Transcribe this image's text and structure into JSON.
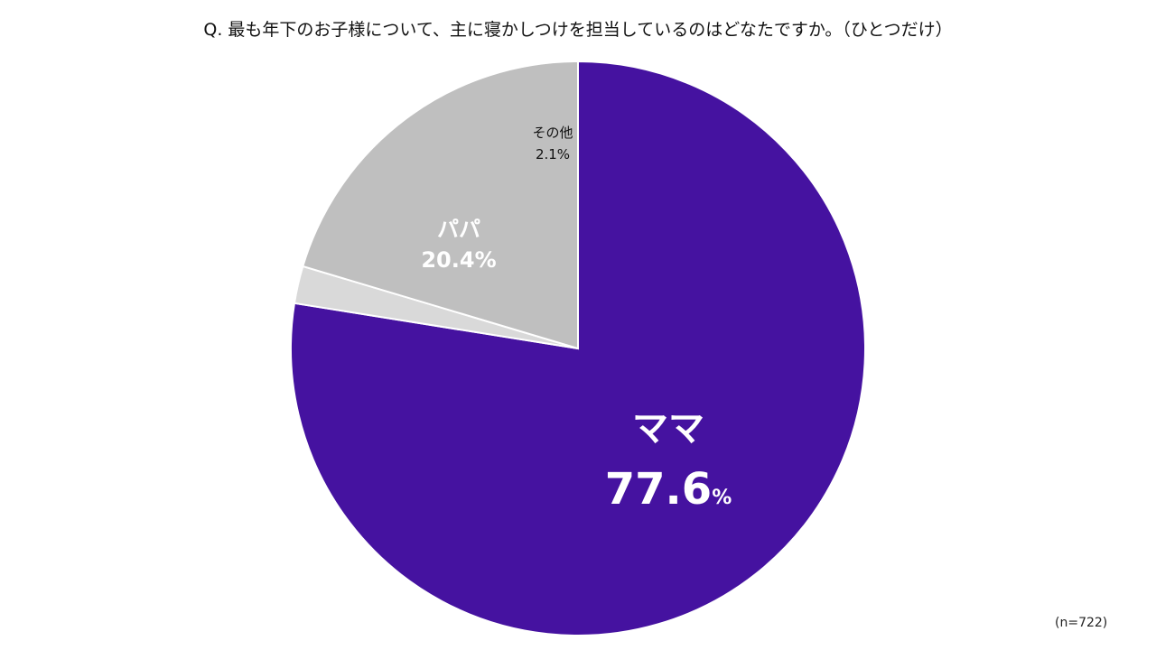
{
  "chart_data": {
    "type": "pie",
    "title": "Q.  最も年下のお子様について、主に寝かしつけを担当しているのはどなたですか。（ひとつだけ）",
    "slices": [
      {
        "name": "ママ",
        "value": 77.6,
        "label": "77.6",
        "unit": "%",
        "color": "#4512A0",
        "label_color": "#ffffff"
      },
      {
        "name": "その他",
        "value": 2.1,
        "label": "2.1%",
        "unit": "",
        "color": "#D9D9D9",
        "label_color": "#111111"
      },
      {
        "name": "パパ",
        "value": 20.4,
        "label": "20.4%",
        "unit": "",
        "color": "#BFBFBF",
        "label_color": "#ffffff"
      }
    ],
    "start": "12 o'clock",
    "direction": "clockwise",
    "legend": "none",
    "note": "(n=722)"
  }
}
